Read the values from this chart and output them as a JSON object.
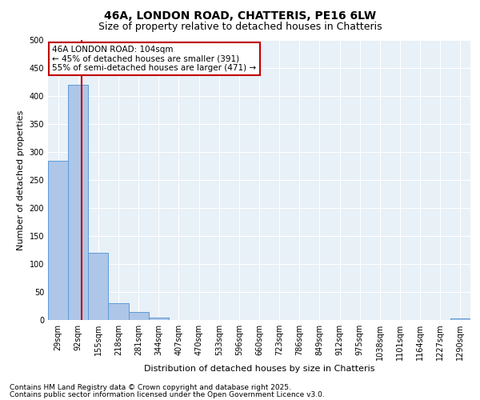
{
  "title_line1": "46A, LONDON ROAD, CHATTERIS, PE16 6LW",
  "title_line2": "Size of property relative to detached houses in Chatteris",
  "xlabel": "Distribution of detached houses by size in Chatteris",
  "ylabel": "Number of detached properties",
  "bin_labels": [
    "29sqm",
    "92sqm",
    "155sqm",
    "218sqm",
    "281sqm",
    "344sqm",
    "407sqm",
    "470sqm",
    "533sqm",
    "596sqm",
    "660sqm",
    "723sqm",
    "786sqm",
    "849sqm",
    "912sqm",
    "975sqm",
    "1038sqm",
    "1101sqm",
    "1164sqm",
    "1227sqm",
    "1290sqm"
  ],
  "bar_values": [
    285,
    420,
    120,
    30,
    15,
    5,
    0,
    0,
    0,
    0,
    0,
    0,
    0,
    0,
    0,
    0,
    0,
    0,
    0,
    0,
    3
  ],
  "bar_color": "#aec6e8",
  "bar_edge_color": "#5b9bd5",
  "vline_x": 1.18,
  "vline_color": "#c00000",
  "annotation_text": "46A LONDON ROAD: 104sqm\n← 45% of detached houses are smaller (391)\n55% of semi-detached houses are larger (471) →",
  "annotation_box_color": "#c00000",
  "ylim": [
    0,
    500
  ],
  "yticks": [
    0,
    50,
    100,
    150,
    200,
    250,
    300,
    350,
    400,
    450,
    500
  ],
  "bg_color": "#e8f0f8",
  "footer_line1": "Contains HM Land Registry data © Crown copyright and database right 2025.",
  "footer_line2": "Contains public sector information licensed under the Open Government Licence v3.0.",
  "title_fontsize": 10,
  "subtitle_fontsize": 9,
  "axis_label_fontsize": 8,
  "tick_fontsize": 7,
  "footer_fontsize": 6.5,
  "ann_fontsize": 7.5
}
